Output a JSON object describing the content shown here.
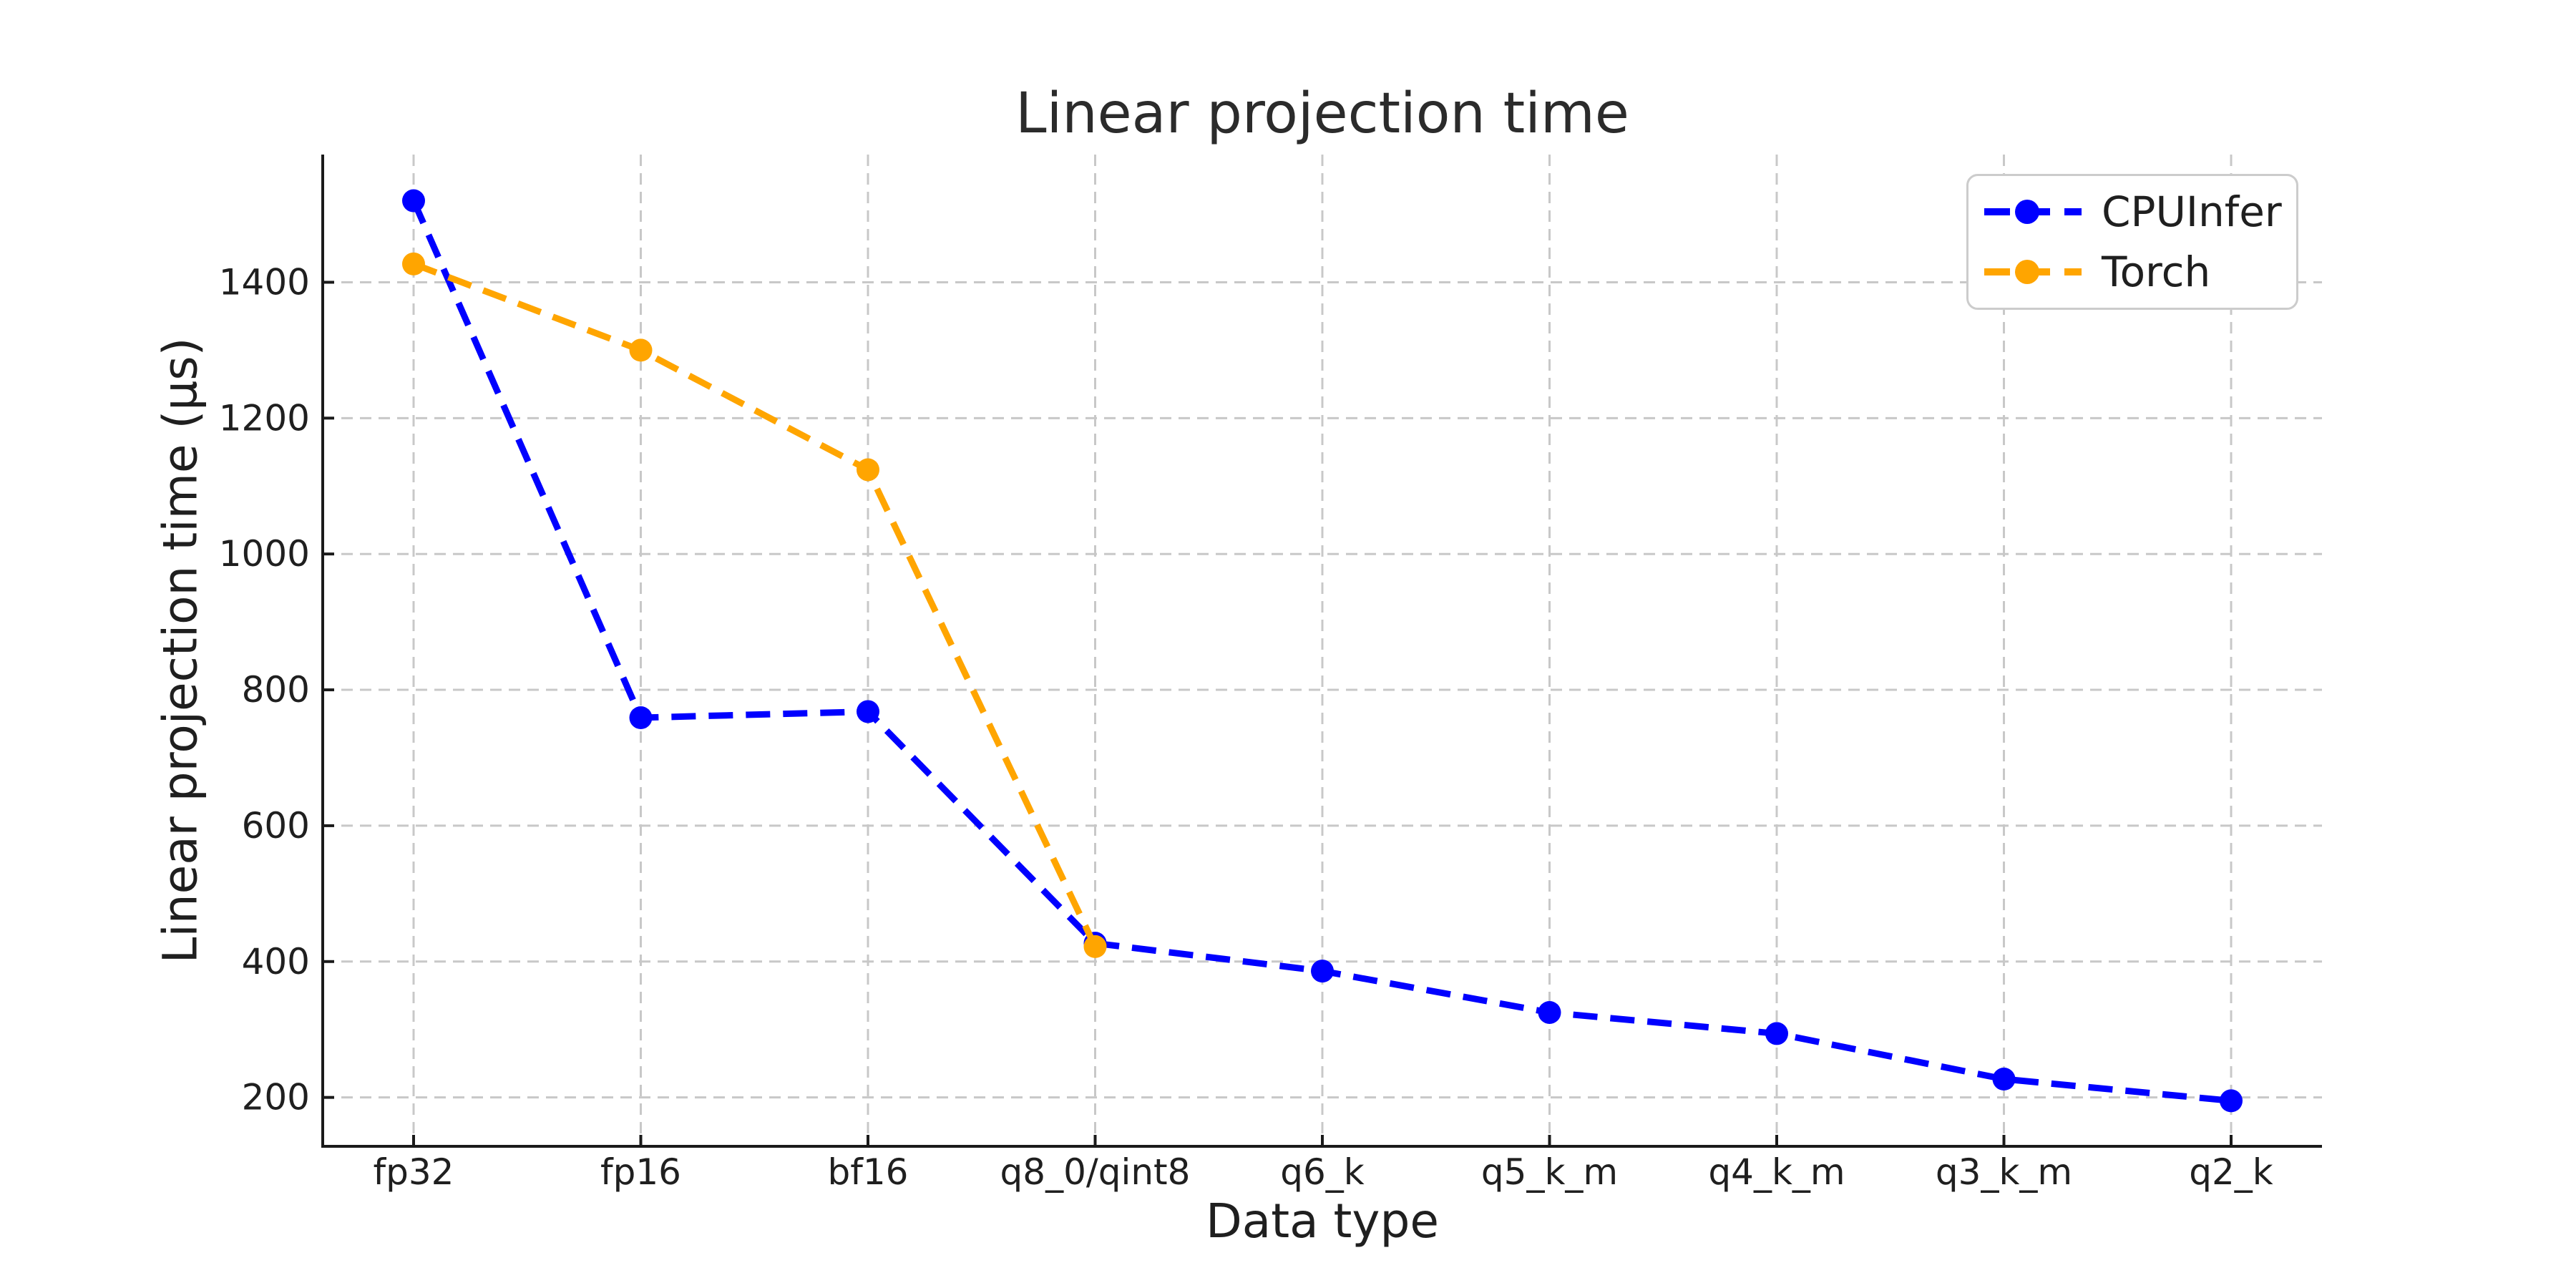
{
  "chart_data": {
    "type": "line",
    "title": "Linear projection time",
    "xlabel": "Data type",
    "ylabel": "Linear projection time (µs)",
    "categories": [
      "fp32",
      "fp16",
      "bf16",
      "q8_0/qint8",
      "q6_k",
      "q5_k_m",
      "q4_k_m",
      "q3_k_m",
      "q2_k"
    ],
    "series": [
      {
        "name": "CPUInfer",
        "color": "#0000ff",
        "linestyle": "dashed",
        "marker": "circle",
        "values": [
          1520,
          759,
          768,
          427,
          386,
          325,
          294,
          227,
          195
        ]
      },
      {
        "name": "Torch",
        "color": "#ffa500",
        "linestyle": "dashed",
        "marker": "circle",
        "values": [
          1427,
          1300,
          1124,
          422,
          null,
          null,
          null,
          null,
          null
        ]
      }
    ],
    "yticks": [
      200,
      400,
      600,
      800,
      1000,
      1200,
      1400
    ],
    "ylim": [
      128,
      1588
    ],
    "grid": true,
    "grid_color": "#c8c8c8",
    "text_color": "#1f1f1f",
    "background_color": "#ffffff",
    "legend_position": "upper right",
    "tick_direction": "in"
  }
}
